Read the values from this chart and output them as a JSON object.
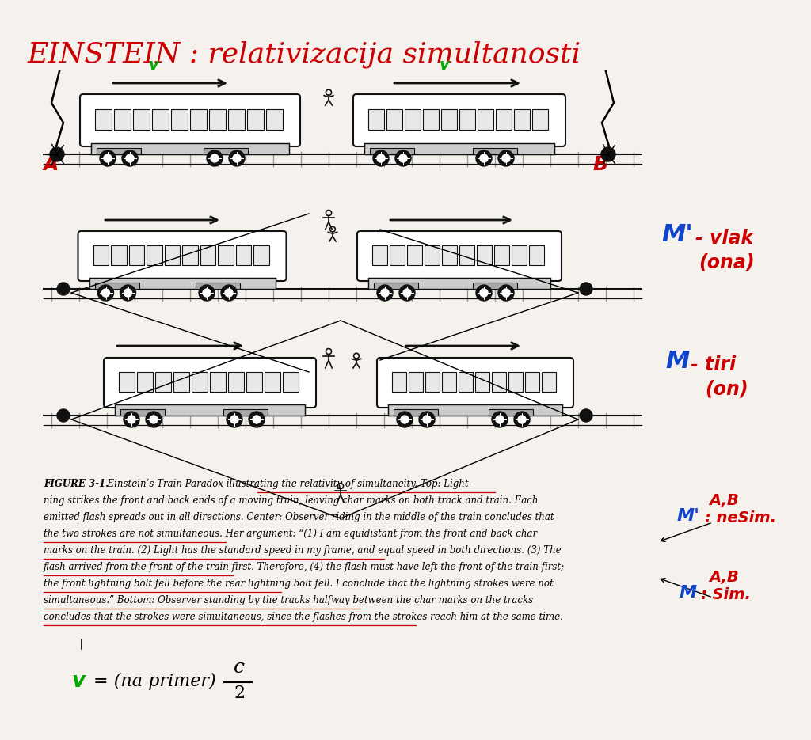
{
  "title": "EINSTEIN : relativizacija simultanosti",
  "title_color": "#cc0000",
  "background_color": "#f5f2ee",
  "caption_lines": [
    "FIGURE 3-1.  Einstein’s Train Paradox illustrating the relativity of simultaneity. Top: Light-",
    "ning strikes the front and back ends of a moving train, leaving char marks on both track and train. Each",
    "emitted flash spreads out in all directions. Center: Observer riding in the middle of the train concludes that",
    "the two strokes are not simultaneous. Her argument: “(1) I am equidistant from the front and back char",
    "marks on the train. (2) Light has the standard speed in my frame, and equal speed in both directions. (3) The",
    "flash arrived from the front of the train first. Therefore, (4) the flash must have left the front of the train first;",
    "the front lightning bolt fell before the rear lightning bolt fell. I conclude that the lightning strokes were not",
    "simultaneous.” Bottom: Observer standing by the tracks halfway between the char marks on the tracks",
    "concludes that the strokes were simultaneous, since the flashes from the strokes reach him at the same time."
  ]
}
